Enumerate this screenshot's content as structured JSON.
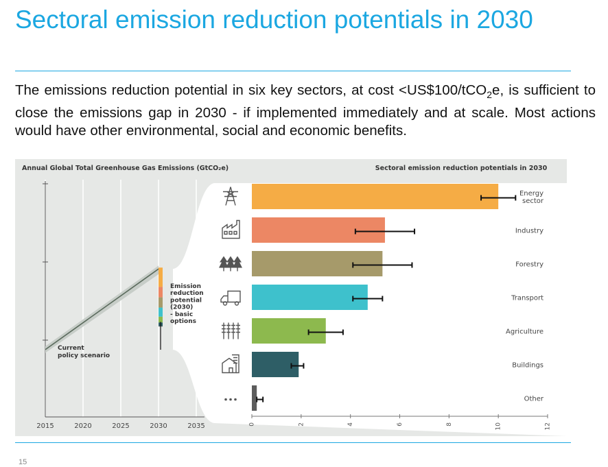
{
  "slide": {
    "title": "Sectoral emission reduction potentials in 2030",
    "body_main": "The emissions reduction potential in six key sectors, at cost <US$100/tCO",
    "body_sub": "2",
    "body_rest": "e, is sufficient to close the emissions gap in 2030 - if implemented immediately and at scale. Most actions would have other environmental, social and economic benefits.",
    "page_number": "15"
  },
  "colors": {
    "accent": "#1ba7e1",
    "panel_bg": "#e6e8e6",
    "energy": "#f5ac45",
    "industry": "#ec8764",
    "forestry": "#a69a6a",
    "transport": "#3ec1cc",
    "agriculture": "#8db94e",
    "buildings": "#2e5e66",
    "other": "#5c5c5c"
  },
  "chart_data": [
    {
      "type": "line",
      "title": "Annual Global Total Greenhouse Gas Emissions (GtCO₂e)",
      "x_ticks": [
        "2015",
        "2020",
        "2025",
        "2030",
        "2035"
      ],
      "xlim": [
        2015,
        2035
      ],
      "series": [
        {
          "name": "Current policy scenario",
          "x": [
            2015,
            2030
          ],
          "y": [
            0.03,
            0.52
          ],
          "band": 0.02
        }
      ],
      "annotations": {
        "current_policy_label": [
          "Current",
          "policy scenario"
        ],
        "reduction_label": [
          "Emission",
          "reduction",
          "potential",
          "(2030)",
          "- basic",
          "options"
        ]
      },
      "reduction_stack": {
        "x": 2030,
        "segment_keys": [
          "energy",
          "industry",
          "forestry",
          "transport",
          "agriculture",
          "buildings",
          "other"
        ],
        "values": [
          10.0,
          5.4,
          5.3,
          4.7,
          3.0,
          1.9,
          0.2
        ],
        "error_range": [
          -0.5,
          0.51
        ]
      }
    },
    {
      "type": "bar",
      "orientation": "horizontal",
      "title": "Sectoral emission reduction potentials in 2030",
      "xlim": [
        0,
        12
      ],
      "x_ticks": [
        0,
        2,
        4,
        6,
        8,
        10,
        12
      ],
      "categories": [
        "Energy sector",
        "Industry",
        "Forestry",
        "Transport",
        "Agriculture",
        "Buildings",
        "Other"
      ],
      "category_lines": [
        [
          "Energy",
          "sector"
        ],
        [
          "Industry"
        ],
        [
          "Forestry"
        ],
        [
          "Transport"
        ],
        [
          "Agriculture"
        ],
        [
          "Buildings"
        ],
        [
          "Other"
        ]
      ],
      "icons": [
        "power-pylon-icon",
        "factory-icon",
        "trees-icon",
        "truck-icon",
        "crops-icon",
        "building-icon",
        "ellipsis-icon"
      ],
      "color_keys": [
        "energy",
        "industry",
        "forestry",
        "transport",
        "agriculture",
        "buildings",
        "other"
      ],
      "values": [
        10.0,
        5.4,
        5.3,
        4.7,
        3.0,
        1.9,
        0.2
      ],
      "errors": [
        [
          9.3,
          10.7
        ],
        [
          4.2,
          6.6
        ],
        [
          4.1,
          6.5
        ],
        [
          4.1,
          5.3
        ],
        [
          2.3,
          3.7
        ],
        [
          1.6,
          2.1
        ],
        [
          0.2,
          0.45
        ]
      ]
    }
  ]
}
